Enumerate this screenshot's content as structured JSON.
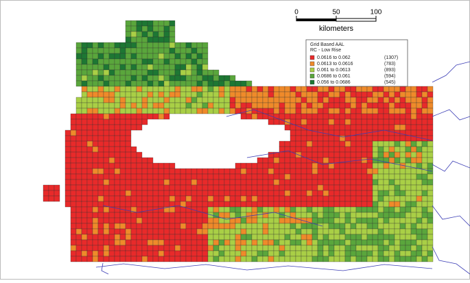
{
  "scale": {
    "ticks": [
      0,
      50,
      100
    ],
    "unit": "kilometers"
  },
  "legend": {
    "title": "Grid Based AAL",
    "subtitle": "RC - Low Rise",
    "items": [
      {
        "range": "0.0616 to 0.062",
        "count": "(1307)",
        "color": "#e82a2a"
      },
      {
        "range": "0.0613 to 0.0616",
        "count": "(783)",
        "color": "#ef8a2a"
      },
      {
        "range": "0.061  to 0.0613",
        "count": "(893)",
        "color": "#a9cf46"
      },
      {
        "range": "0.0686 to 0.061",
        "count": "(594)",
        "color": "#5aa63c"
      },
      {
        "range": "0.056  to 0.0686",
        "count": "(545)",
        "color": "#1d7733"
      }
    ]
  }
}
